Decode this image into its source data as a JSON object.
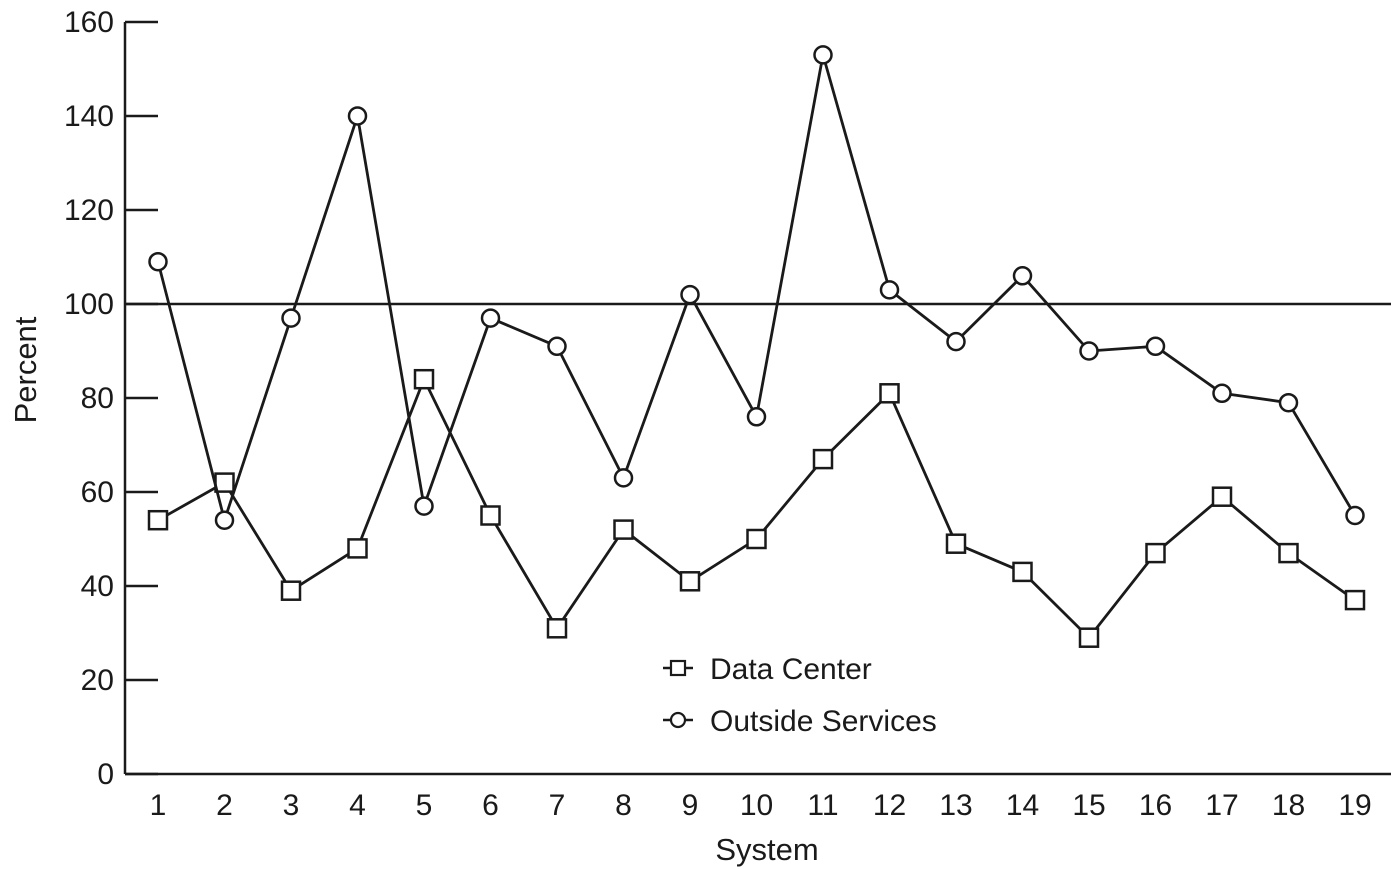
{
  "chart_data": {
    "type": "line",
    "xlabel": "System",
    "ylabel": "Percent",
    "categories": [
      "1",
      "2",
      "3",
      "4",
      "5",
      "6",
      "7",
      "8",
      "9",
      "10",
      "11",
      "12",
      "13",
      "14",
      "15",
      "16",
      "17",
      "18",
      "19"
    ],
    "yticks": [
      "0",
      "20",
      "40",
      "60",
      "80",
      "100",
      "120",
      "140",
      "160"
    ],
    "ylim": [
      0,
      160
    ],
    "reference_line": 100,
    "series": [
      {
        "name": "Data Center",
        "marker": "square",
        "values": [
          54,
          62,
          39,
          48,
          84,
          55,
          31,
          52,
          41,
          50,
          67,
          81,
          49,
          43,
          29,
          47,
          59,
          47,
          37
        ]
      },
      {
        "name": "Outside Services",
        "marker": "circle",
        "values": [
          109,
          54,
          97,
          140,
          57,
          97,
          91,
          63,
          102,
          76,
          153,
          103,
          92,
          106,
          90,
          91,
          81,
          79,
          55
        ]
      }
    ],
    "legend_position": "lower-center",
    "grid": false,
    "colors": {
      "line": "#1a1a1a",
      "marker_fill": "#ffffff"
    }
  }
}
